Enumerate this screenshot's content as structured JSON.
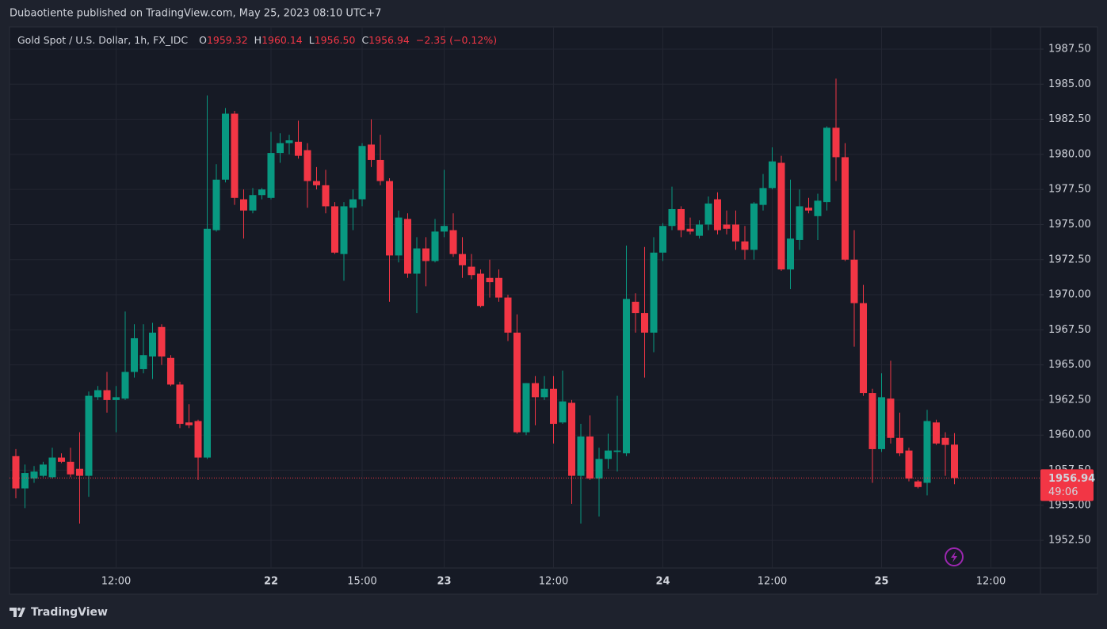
{
  "page": {
    "publisher": "Dubaotiente published on TradingView.com, May 25, 2023 08:10 UTC+7",
    "footer": "TradingView"
  },
  "chart_data": {
    "type": "candlestick",
    "title": "Gold Spot / U.S. Dollar, 1h, FX_IDC",
    "legend": [
      {
        "key": "O",
        "value": "1959.32"
      },
      {
        "key": "H",
        "value": "1960.14"
      },
      {
        "key": "L",
        "value": "1956.50"
      },
      {
        "key": "C",
        "value": "1956.94"
      }
    ],
    "change": "−2.35 (−0.12%)",
    "last_price_label": "1956.94",
    "countdown": "49:06",
    "up_color": "#089981",
    "down_color": "#f23645",
    "open": [
      1958.5,
      1956.2,
      1956.9,
      1957.1,
      1957.0,
      1958.4,
      1958.1,
      1957.6,
      1957.1,
      1962.7,
      1963.2,
      1962.5,
      1962.6,
      1964.5,
      1964.7,
      1965.6,
      1967.7,
      1965.5,
      1963.6,
      1960.9,
      1961.0,
      1958.4,
      1974.6,
      1978.2,
      1982.9,
      1976.8,
      1976.0,
      1977.1,
      1976.9,
      1980.1,
      1980.8,
      1980.9,
      1980.3,
      1978.1,
      1977.8,
      1976.3,
      1972.9,
      1976.2,
      1976.8,
      1980.7,
      1979.6,
      1978.1,
      1972.8,
      1975.4,
      1971.5,
      1973.3,
      1972.4,
      1974.5,
      1974.6,
      1972.9,
      1972.0,
      1971.5,
      1971.2,
      1971.2,
      1969.8,
      1967.3,
      1960.2,
      1963.7,
      1962.7,
      1963.3,
      1960.9,
      1962.3,
      1957.1,
      1959.9,
      1956.9,
      1958.3,
      1958.8,
      1958.7,
      1969.5,
      1968.7,
      1967.3,
      1973.0,
      1974.9,
      1976.1,
      1974.7,
      1974.2,
      1975.0,
      1976.8,
      1975.0,
      1975.0,
      1973.8,
      1973.2,
      1976.4,
      1977.6,
      1979.4,
      1971.8,
      1973.9,
      1976.2,
      1975.6,
      1976.6,
      1981.9,
      1979.8,
      1972.5,
      1969.4,
      1963.0,
      1959.0,
      1962.6,
      1959.8,
      1958.9,
      1956.7,
      1956.6,
      1960.9,
      1959.8,
      1959.32
    ],
    "high": [
      1959.0,
      1957.9,
      1957.8,
      1958.1,
      1959.1,
      1958.7,
      1959.1,
      1960.2,
      1963.1,
      1963.5,
      1964.5,
      1963.5,
      1968.8,
      1967.9,
      1967.9,
      1968.0,
      1967.9,
      1965.7,
      1963.8,
      1962.2,
      1961.1,
      1984.2,
      1979.3,
      1983.3,
      1983.1,
      1977.5,
      1977.6,
      1977.6,
      1981.6,
      1981.5,
      1981.4,
      1982.4,
      1980.8,
      1979.1,
      1978.9,
      1976.6,
      1976.6,
      1977.5,
      1980.8,
      1982.5,
      1981.4,
      1978.3,
      1976.0,
      1975.8,
      1974.1,
      1974.1,
      1975.4,
      1978.9,
      1975.8,
      1974.1,
      1972.9,
      1971.8,
      1972.5,
      1971.8,
      1970.0,
      1968.6,
      1963.7,
      1964.2,
      1964.2,
      1964.2,
      1964.6,
      1962.5,
      1960.8,
      1961.4,
      1959.1,
      1960.1,
      1962.8,
      1973.5,
      1970.1,
      1973.4,
      1974.1,
      1975.1,
      1977.7,
      1976.3,
      1975.5,
      1975.3,
      1977.0,
      1977.3,
      1976.0,
      1976.0,
      1974.9,
      1976.6,
      1978.6,
      1980.5,
      1979.9,
      1978.2,
      1977.5,
      1976.9,
      1977.2,
      1982.0,
      1985.4,
      1980.8,
      1974.6,
      1970.7,
      1963.3,
      1964.4,
      1965.3,
      1961.6,
      1959.1,
      1956.8,
      1961.8,
      1961.1,
      1960.2,
      1960.14
    ],
    "low": [
      1955.5,
      1954.8,
      1956.6,
      1957.0,
      1956.9,
      1958.0,
      1957.0,
      1953.7,
      1955.6,
      1962.5,
      1961.6,
      1960.2,
      1962.5,
      1964.1,
      1964.4,
      1964.0,
      1965.0,
      1963.5,
      1960.5,
      1960.5,
      1956.8,
      1958.3,
      1974.5,
      1978.0,
      1976.4,
      1974.0,
      1975.8,
      1976.8,
      1976.8,
      1979.4,
      1980.0,
      1979.7,
      1976.2,
      1977.5,
      1975.8,
      1972.9,
      1971.0,
      1974.6,
      1976.3,
      1979.1,
      1977.8,
      1969.5,
      1972.3,
      1971.2,
      1968.7,
      1970.6,
      1972.3,
      1974.1,
      1972.7,
      1971.2,
      1971.1,
      1969.1,
      1969.8,
      1969.5,
      1966.7,
      1960.1,
      1960.0,
      1960.7,
      1962.5,
      1959.4,
      1960.8,
      1955.1,
      1953.7,
      1956.8,
      1954.2,
      1957.6,
      1957.4,
      1958.5,
      1967.3,
      1964.1,
      1965.9,
      1972.4,
      1974.6,
      1974.1,
      1974.3,
      1974.0,
      1974.6,
      1974.3,
      1974.3,
      1973.2,
      1972.5,
      1972.5,
      1976.0,
      1977.5,
      1971.7,
      1970.4,
      1973.2,
      1975.8,
      1973.9,
      1976.0,
      1978.1,
      1972.4,
      1966.3,
      1962.8,
      1956.6,
      1958.8,
      1959.4,
      1958.5,
      1956.7,
      1956.2,
      1955.7,
      1959.3,
      1957.1,
      1956.5
    ],
    "close": [
      1956.2,
      1957.3,
      1957.4,
      1957.9,
      1958.4,
      1958.1,
      1957.2,
      1957.1,
      1962.8,
      1963.2,
      1962.5,
      1962.7,
      1964.5,
      1966.9,
      1965.7,
      1967.3,
      1965.6,
      1963.6,
      1960.8,
      1960.7,
      1958.4,
      1974.7,
      1978.2,
      1982.9,
      1976.9,
      1976.0,
      1977.1,
      1977.5,
      1980.1,
      1980.8,
      1981.0,
      1979.9,
      1978.1,
      1977.8,
      1976.3,
      1973.0,
      1976.3,
      1976.8,
      1980.6,
      1979.6,
      1978.1,
      1972.8,
      1975.5,
      1971.5,
      1973.3,
      1972.4,
      1974.5,
      1974.9,
      1972.9,
      1972.1,
      1971.4,
      1969.2,
      1970.9,
      1969.8,
      1967.3,
      1960.2,
      1963.7,
      1962.7,
      1963.3,
      1960.8,
      1962.4,
      1957.1,
      1959.9,
      1956.9,
      1958.3,
      1958.9,
      1958.9,
      1969.7,
      1968.7,
      1967.3,
      1973.0,
      1974.9,
      1976.1,
      1974.6,
      1974.5,
      1975.0,
      1976.5,
      1974.6,
      1974.7,
      1973.8,
      1973.2,
      1976.5,
      1977.6,
      1979.5,
      1971.8,
      1974.0,
      1976.3,
      1976.0,
      1976.7,
      1981.9,
      1979.8,
      1972.5,
      1969.4,
      1963.0,
      1959.0,
      1962.7,
      1959.8,
      1958.7,
      1956.9,
      1956.3,
      1961.0,
      1959.4,
      1959.3,
      1956.94
    ],
    "x_labels": [
      {
        "value": 11,
        "label": "12:00"
      },
      {
        "value": 28,
        "label": "22"
      },
      {
        "value": 38,
        "label": "15:00"
      },
      {
        "value": 47,
        "label": "23"
      },
      {
        "value": 59,
        "label": "12:00"
      },
      {
        "value": 71,
        "label": "24"
      },
      {
        "value": 83,
        "label": "12:00"
      },
      {
        "value": 95,
        "label": "25"
      },
      {
        "value": 107,
        "label": "12:00"
      }
    ],
    "ylim": [
      1950.53,
      1989.08
    ],
    "yticks": [
      {
        "value": 1952.5,
        "label": "1952.50"
      },
      {
        "value": 1955,
        "label": "1955.00"
      },
      {
        "value": 1957.5,
        "label": "1957.50"
      },
      {
        "value": 1960,
        "label": "1960.00"
      },
      {
        "value": 1962.5,
        "label": "1962.50"
      },
      {
        "value": 1965,
        "label": "1965.00"
      },
      {
        "value": 1967.5,
        "label": "1967.50"
      },
      {
        "value": 1970,
        "label": "1970.00"
      },
      {
        "value": 1972.5,
        "label": "1972.50"
      },
      {
        "value": 1975,
        "label": "1975.00"
      },
      {
        "value": 1977.5,
        "label": "1977.50"
      },
      {
        "value": 1980,
        "label": "1980.00"
      },
      {
        "value": 1982.5,
        "label": "1982.50"
      },
      {
        "value": 1985,
        "label": "1985.00"
      },
      {
        "value": 1987.5,
        "label": "1987.50"
      }
    ],
    "grid": true
  }
}
